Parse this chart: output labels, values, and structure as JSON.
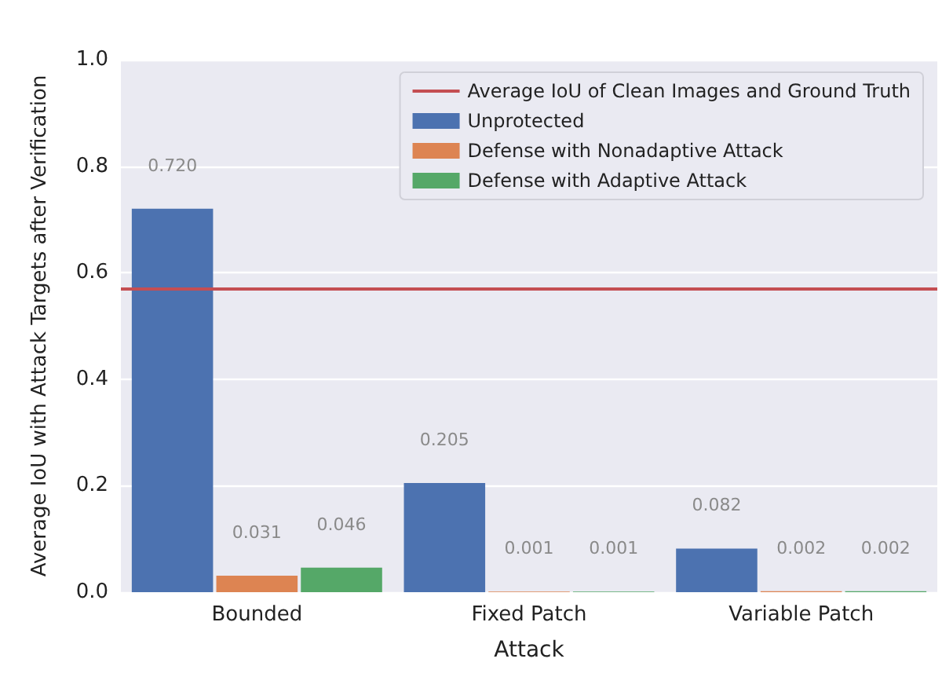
{
  "chart_data": {
    "type": "bar",
    "xlabel": "Attack",
    "ylabel": "Average IoU with Attack Targets after Verification",
    "categories": [
      "Bounded",
      "Fixed Patch",
      "Variable Patch"
    ],
    "series": [
      {
        "name": "Unprotected",
        "color": "#4c72b0",
        "values": [
          0.72,
          0.205,
          0.082
        ],
        "value_labels": [
          "0.720",
          "0.205",
          "0.082"
        ]
      },
      {
        "name": "Defense with Nonadaptive Attack",
        "color": "#dd8452",
        "values": [
          0.031,
          0.001,
          0.002
        ],
        "value_labels": [
          "0.031",
          "0.001",
          "0.002"
        ]
      },
      {
        "name": "Defense with Adaptive Attack",
        "color": "#55a868",
        "values": [
          0.046,
          0.001,
          0.002
        ],
        "value_labels": [
          "0.046",
          "0.001",
          "0.002"
        ]
      }
    ],
    "ylim": [
      0,
      1
    ],
    "yticks": [
      {
        "value": 0,
        "label": "0.0"
      },
      0.2,
      0.4,
      0.6,
      0.8,
      {
        "value": 1,
        "label": "1.0"
      }
    ],
    "ref_lines": [
      {
        "axis": "y",
        "value": 0.573,
        "label": "Average IoU of Clean Images and Ground Truth",
        "color": "#c44e52"
      }
    ],
    "grid": "y",
    "legend": "top right"
  }
}
